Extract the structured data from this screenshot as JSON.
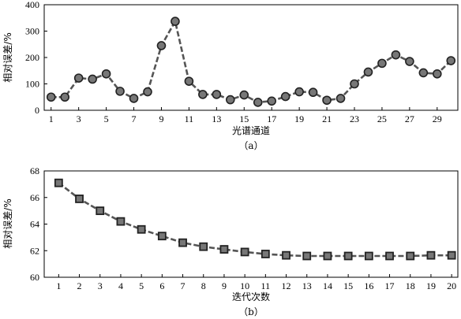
{
  "chart_data": [
    {
      "type": "line",
      "caption": "（a）",
      "xlabel": "光谱通道",
      "ylabel": "相对误差/%",
      "xlim": [
        0.5,
        30.5
      ],
      "ylim": [
        0,
        400
      ],
      "xticks": [
        "1",
        "3",
        "5",
        "7",
        "9",
        "11",
        "13",
        "15",
        "17",
        "19",
        "21",
        "23",
        "25",
        "27",
        "29"
      ],
      "xtick_values": [
        1,
        3,
        5,
        7,
        9,
        11,
        13,
        15,
        17,
        19,
        21,
        23,
        25,
        27,
        29
      ],
      "yticks": [
        "0",
        "100",
        "200",
        "300",
        "400"
      ],
      "ytick_values": [
        0,
        100,
        200,
        300,
        400
      ],
      "marker": "circle",
      "series": [
        {
          "x": [
            1,
            2,
            3,
            4,
            5,
            6,
            7,
            8,
            9,
            10,
            11,
            12,
            13,
            14,
            15,
            16,
            17,
            18,
            19,
            20,
            21,
            22,
            23,
            24,
            25,
            26,
            27,
            28,
            29,
            30
          ],
          "values": [
            50,
            50,
            122,
            118,
            138,
            72,
            45,
            70,
            245,
            337,
            110,
            60,
            60,
            40,
            58,
            30,
            35,
            52,
            70,
            68,
            38,
            45,
            100,
            145,
            178,
            210,
            185,
            142,
            138,
            188
          ]
        }
      ],
      "colors": {
        "line": "#555555",
        "marker_fill": "#777777",
        "marker_edge": "#222222"
      }
    },
    {
      "type": "line",
      "caption": "（b）",
      "xlabel": "迭代次数",
      "ylabel": "相对误差/%",
      "xlim": [
        0.3,
        20.3
      ],
      "ylim": [
        60,
        68
      ],
      "xticks": [
        "1",
        "2",
        "3",
        "4",
        "5",
        "6",
        "7",
        "8",
        "9",
        "10",
        "11",
        "12",
        "13",
        "14",
        "15",
        "16",
        "17",
        "18",
        "19",
        "20"
      ],
      "xtick_values": [
        1,
        2,
        3,
        4,
        5,
        6,
        7,
        8,
        9,
        10,
        11,
        12,
        13,
        14,
        15,
        16,
        17,
        18,
        19,
        20
      ],
      "yticks": [
        "60",
        "62",
        "64",
        "66",
        "68"
      ],
      "ytick_values": [
        60,
        62,
        64,
        66,
        68
      ],
      "marker": "square",
      "series": [
        {
          "x": [
            1,
            2,
            3,
            4,
            5,
            6,
            7,
            8,
            9,
            10,
            11,
            12,
            13,
            14,
            15,
            16,
            17,
            18,
            19,
            20
          ],
          "values": [
            67.1,
            65.9,
            65.0,
            64.2,
            63.6,
            63.1,
            62.6,
            62.3,
            62.1,
            61.9,
            61.75,
            61.65,
            61.6,
            61.6,
            61.6,
            61.6,
            61.6,
            61.6,
            61.65,
            61.65
          ]
        }
      ],
      "colors": {
        "line": "#555555",
        "marker_fill": "#777777",
        "marker_edge": "#222222"
      }
    }
  ]
}
